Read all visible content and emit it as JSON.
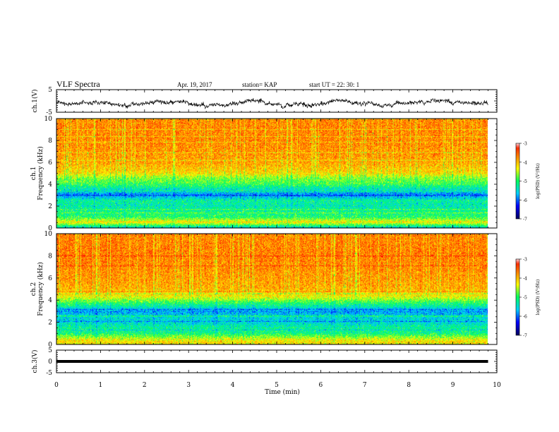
{
  "header": {
    "title": "VLF Spectra",
    "date": "Apr. 19, 2017",
    "station": "station= KAP",
    "start_ut": "start UT =  22: 30: 1"
  },
  "chart_data": [
    {
      "type": "line",
      "panel": "ch1-waveform",
      "ylabel": "ch.1(V)",
      "ylim": [
        -5,
        5
      ],
      "yticks": [
        "5",
        "-5"
      ],
      "xlim": [
        0,
        10
      ],
      "description_values": "noisy waveform centered near -1 V ranging about -4 to 3 V over 0 to 9.8 min"
    },
    {
      "type": "heatmap",
      "panel": "ch1-spectrogram",
      "ylabel": "ch.1\nFrequency (kHz)",
      "ylabel_lines": [
        "ch.1",
        "Frequency (kHz)"
      ],
      "ylim": [
        0,
        10
      ],
      "yticks": [
        "0",
        "2",
        "4",
        "6",
        "8",
        "10"
      ],
      "xlim": [
        0,
        10
      ],
      "data_xmax": 9.8,
      "colorbar": {
        "label": "log(PSD) (V²/Hz)",
        "range": [
          -7,
          -3
        ],
        "ticks": [
          "-3",
          "-4",
          "-5",
          "-6",
          "-7"
        ]
      },
      "frequency_profile": [
        {
          "f": 0.0,
          "v": -5.5
        },
        {
          "f": 0.5,
          "v": -4.2
        },
        {
          "f": 1.0,
          "v": -5.0
        },
        {
          "f": 1.5,
          "v": -5.1
        },
        {
          "f": 2.0,
          "v": -5.3
        },
        {
          "f": 2.5,
          "v": -5.2
        },
        {
          "f": 3.0,
          "v": -5.9
        },
        {
          "f": 3.5,
          "v": -5.4
        },
        {
          "f": 4.0,
          "v": -4.9
        },
        {
          "f": 4.6,
          "v": -4.6
        },
        {
          "f": 5.0,
          "v": -4.15
        },
        {
          "f": 6.0,
          "v": -3.85
        },
        {
          "f": 8.0,
          "v": -3.7
        },
        {
          "f": 10.0,
          "v": -3.7
        }
      ]
    },
    {
      "type": "heatmap",
      "panel": "ch2-spectrogram",
      "ylabel": "ch.2\nFrequency (kHz)",
      "ylabel_lines": [
        "ch.2",
        "Frequency (kHz)"
      ],
      "ylim": [
        0,
        10
      ],
      "yticks": [
        "0",
        "2",
        "4",
        "6",
        "8",
        "10"
      ],
      "xlim": [
        0,
        10
      ],
      "data_xmax": 9.8,
      "colorbar": {
        "label": "log(PSD) (V²/Hz)",
        "range": [
          -7,
          -3
        ],
        "ticks": [
          "-3",
          "-4",
          "-5",
          "-6",
          "-7"
        ]
      },
      "frequency_profile": [
        {
          "f": 0.0,
          "v": -4.0
        },
        {
          "f": 0.4,
          "v": -4.3
        },
        {
          "f": 1.0,
          "v": -5.1
        },
        {
          "f": 1.5,
          "v": -5.2
        },
        {
          "f": 2.0,
          "v": -5.5
        },
        {
          "f": 2.5,
          "v": -5.5
        },
        {
          "f": 3.0,
          "v": -5.8
        },
        {
          "f": 3.4,
          "v": -5.3
        },
        {
          "f": 3.8,
          "v": -4.9
        },
        {
          "f": 4.3,
          "v": -4.3
        },
        {
          "f": 5.0,
          "v": -3.9
        },
        {
          "f": 6.0,
          "v": -3.8
        },
        {
          "f": 8.0,
          "v": -3.65
        },
        {
          "f": 10.0,
          "v": -3.7
        }
      ]
    },
    {
      "type": "line",
      "panel": "ch3-waveform",
      "ylabel": "ch.3(V)",
      "ylim": [
        -5,
        5
      ],
      "yticks": [
        "5",
        "0",
        "-5"
      ],
      "xlim": [
        0,
        10
      ],
      "series": [
        {
          "x": [
            0,
            9.8
          ],
          "y": [
            0,
            0
          ]
        }
      ]
    }
  ],
  "xaxis": {
    "label": "Time (min)",
    "ticks": [
      "0",
      "1",
      "2",
      "3",
      "4",
      "5",
      "6",
      "7",
      "8",
      "9",
      "10"
    ]
  },
  "colors": {
    "colormap": [
      "#000060",
      "#0000ff",
      "#00d0ff",
      "#00ff60",
      "#ffff00",
      "#ff8000",
      "#ff0000",
      "#ffffff"
    ]
  }
}
